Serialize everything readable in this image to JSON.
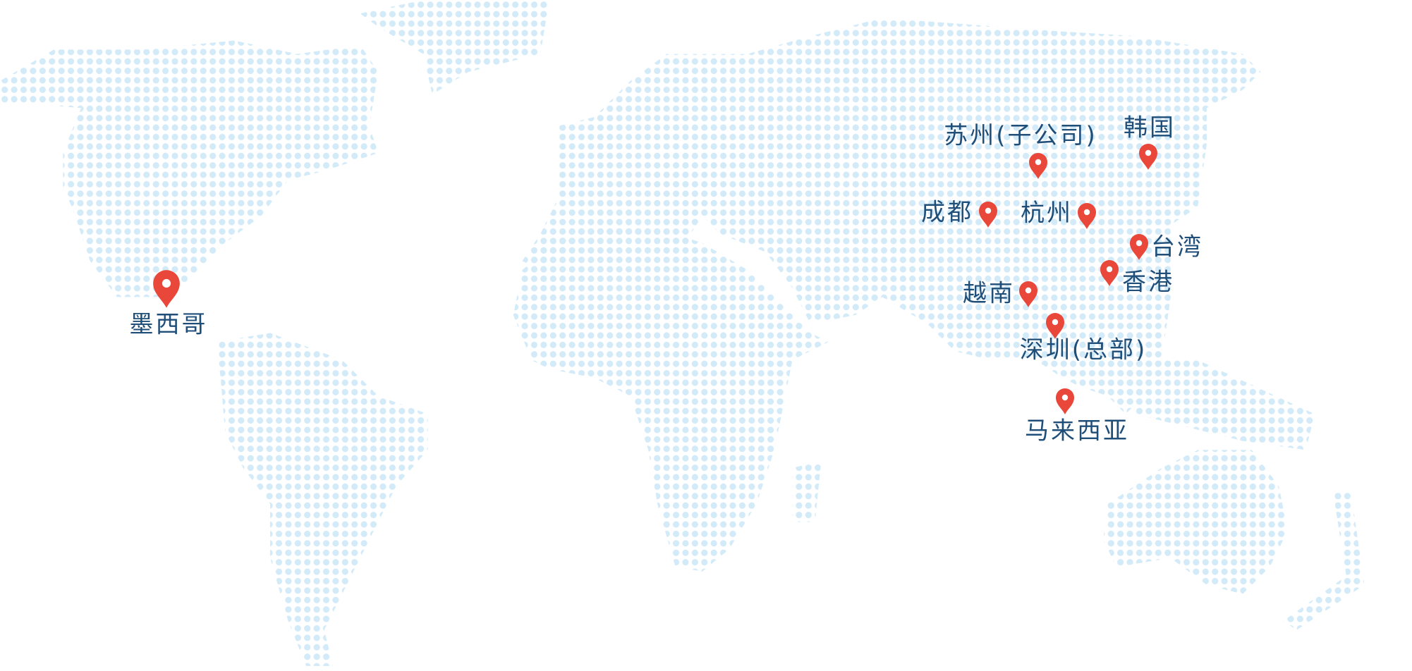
{
  "locations": [
    {
      "label": "墨西哥"
    },
    {
      "label": "苏州(子公司)"
    },
    {
      "label": "韩国"
    },
    {
      "label": "成都"
    },
    {
      "label": "杭州"
    },
    {
      "label": "台湾"
    },
    {
      "label": "香港"
    },
    {
      "label": "越南"
    },
    {
      "label": "深圳(总部)"
    },
    {
      "label": "马来西亚"
    }
  ]
}
